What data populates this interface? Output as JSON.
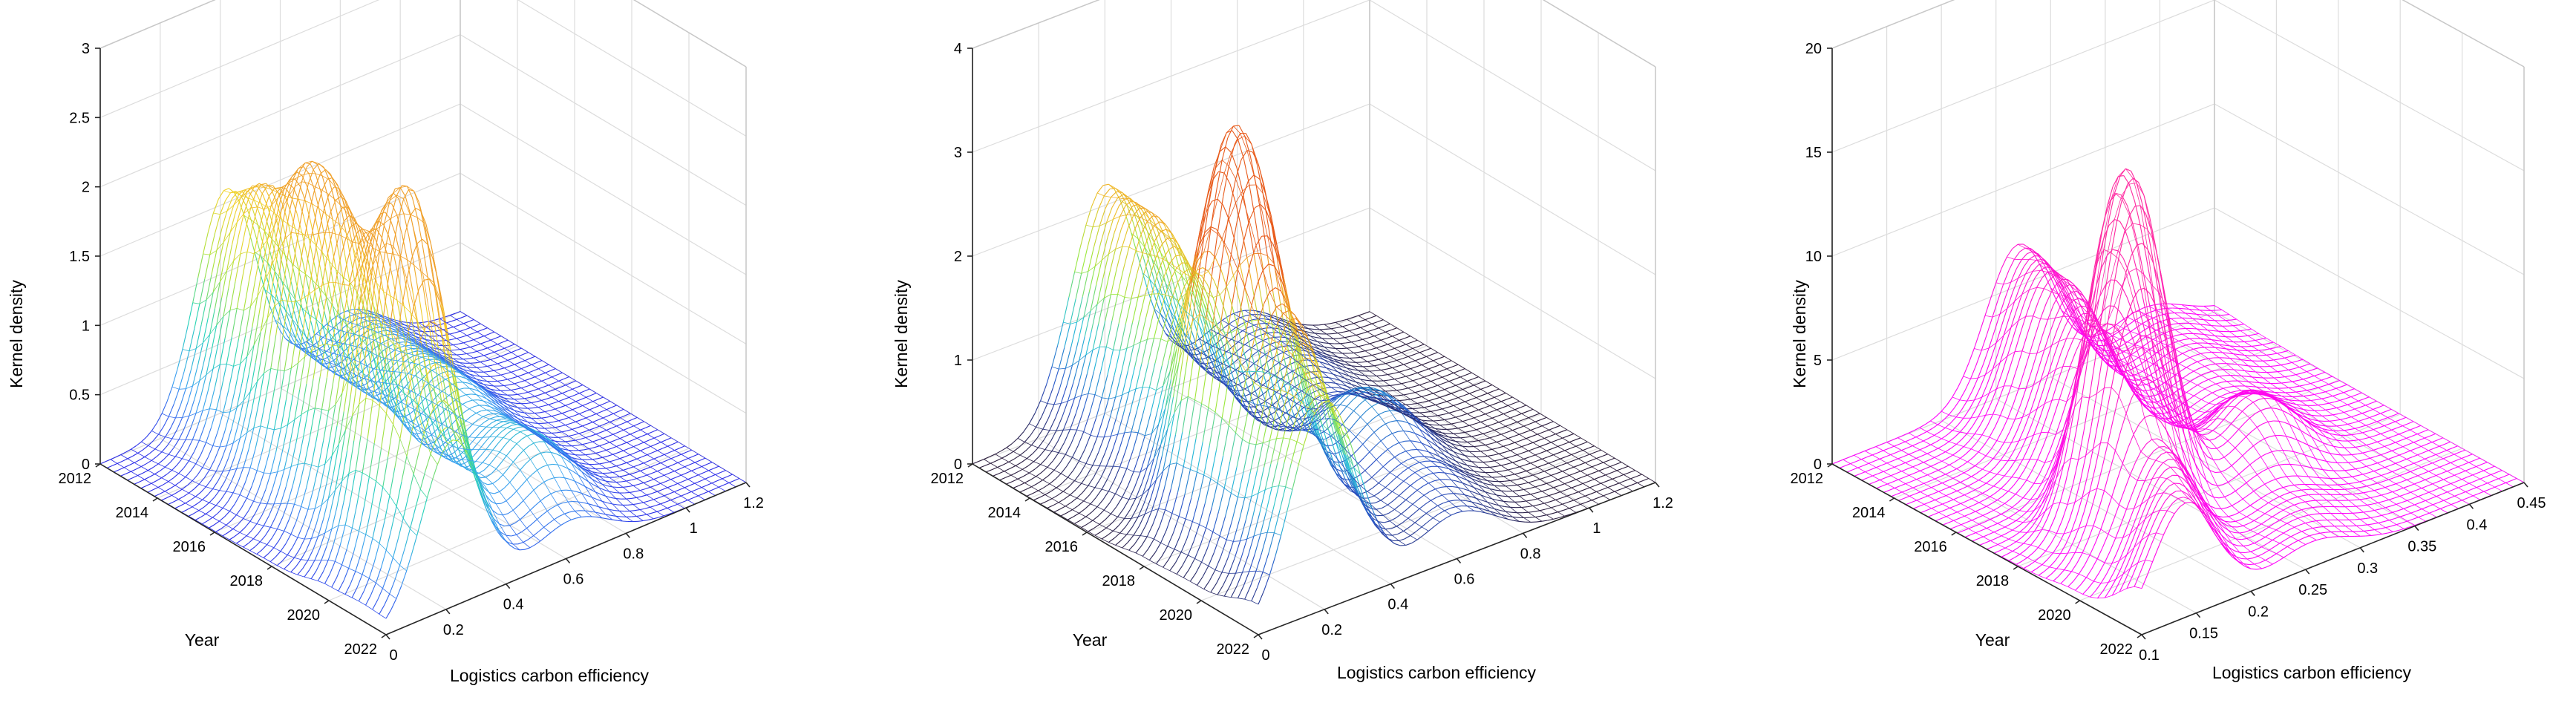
{
  "chart_data": [
    {
      "type": "surface",
      "title": "",
      "xlabel": "Logistics carbon efficiency",
      "ylabel": "Year",
      "zlabel": "Kernel density",
      "x_ticks": [
        "0",
        "0.2",
        "0.4",
        "0.6",
        "0.8",
        "1",
        "1.2"
      ],
      "y_ticks": [
        "2012",
        "2014",
        "2016",
        "2018",
        "2020",
        "2022"
      ],
      "z_ticks": [
        "0",
        "0.5",
        "1",
        "1.5",
        "2",
        "2.5",
        "3"
      ],
      "xlim": [
        0,
        1.2
      ],
      "ylim": [
        2012,
        2022
      ],
      "zlim": [
        0,
        3
      ],
      "colormap": [
        "#2b2be8",
        "#3aa0f0",
        "#22d2b8",
        "#a8e23a",
        "#f2d22a",
        "#f0a02a"
      ],
      "grid": true,
      "peaks": [
        {
          "year": 2012,
          "x": 0.42,
          "density": 1.6
        },
        {
          "year": 2014,
          "x": 0.38,
          "density": 1.9
        },
        {
          "year": 2016,
          "x": 0.34,
          "density": 2.35
        },
        {
          "year": 2018,
          "x": 0.3,
          "density": 2.15
        },
        {
          "year": 2020,
          "x": 0.26,
          "density": 2.75
        },
        {
          "year": 2022,
          "x": 0.22,
          "density": 1.2
        }
      ]
    },
    {
      "type": "surface",
      "title": "",
      "xlabel": "Logistics carbon efficiency",
      "ylabel": "Year",
      "zlabel": "Kernel density",
      "x_ticks": [
        "0",
        "0.2",
        "0.4",
        "0.6",
        "0.8",
        "1",
        "1.2"
      ],
      "y_ticks": [
        "2012",
        "2014",
        "2016",
        "2018",
        "2020",
        "2022"
      ],
      "z_ticks": [
        "0",
        "1",
        "2",
        "3",
        "4"
      ],
      "xlim": [
        0,
        1.2
      ],
      "ylim": [
        2012,
        2022
      ],
      "zlim": [
        0,
        4
      ],
      "colormap": [
        "#2a1a3a",
        "#2850c8",
        "#22c0d8",
        "#9ae83a",
        "#f0c02a",
        "#e85a1a"
      ],
      "grid": true,
      "peaks": [
        {
          "year": 2012,
          "x": 0.4,
          "density": 2.2
        },
        {
          "year": 2014,
          "x": 0.36,
          "density": 2.3
        },
        {
          "year": 2016,
          "x": 0.32,
          "density": 2.1
        },
        {
          "year": 2018,
          "x": 0.28,
          "density": 3.9
        },
        {
          "year": 2020,
          "x": 0.25,
          "density": 2.5
        },
        {
          "year": 2022,
          "x": 0.2,
          "density": 2.0
        }
      ]
    },
    {
      "type": "surface",
      "title": "",
      "xlabel": "Logistics carbon efficiency",
      "ylabel": "Year",
      "zlabel": "Kernel density",
      "x_ticks": [
        "0.1",
        "0.15",
        "0.2",
        "0.25",
        "0.3",
        "0.35",
        "0.4",
        "0.45"
      ],
      "y_ticks": [
        "2012",
        "2014",
        "2016",
        "2018",
        "2020",
        "2022"
      ],
      "z_ticks": [
        "0",
        "5",
        "10",
        "15",
        "20"
      ],
      "xlim": [
        0.1,
        0.45
      ],
      "ylim": [
        2012,
        2022
      ],
      "zlim": [
        0,
        20
      ],
      "colormap": [
        "#ff00ff",
        "#ff2aa0"
      ],
      "grid": true,
      "peaks": [
        {
          "year": 2012,
          "x": 0.27,
          "density": 7
        },
        {
          "year": 2014,
          "x": 0.25,
          "density": 7.5
        },
        {
          "year": 2016,
          "x": 0.23,
          "density": 7
        },
        {
          "year": 2018,
          "x": 0.2,
          "density": 17
        },
        {
          "year": 2020,
          "x": 0.17,
          "density": 6
        },
        {
          "year": 2022,
          "x": 0.14,
          "density": 5.5
        }
      ]
    }
  ]
}
